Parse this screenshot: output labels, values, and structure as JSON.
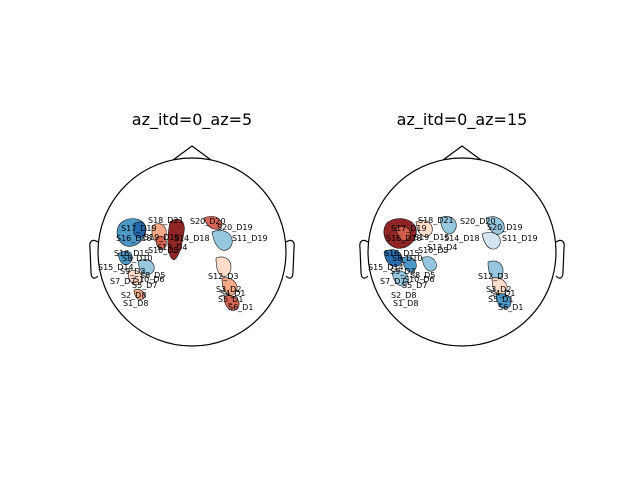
{
  "figure": {
    "panels": [
      {
        "title": "az_itd=0_az=5",
        "labels": [
          "S18_D21",
          "S17_D19",
          "S20_D20",
          "S20_D19",
          "S16_D18",
          "S19_D15",
          "S14_D18",
          "S11_D19",
          "S10_D5",
          "S16_D15",
          "S13_D4",
          "S8_D10",
          "S15_D14",
          "S9_D3",
          "S8_D5",
          "S10_D6",
          "S7_D7",
          "S5_D7",
          "S2_D8",
          "S1_D8",
          "S12_D3",
          "S3_D2",
          "S4_D1",
          "S5_D1",
          "S6_D1"
        ]
      },
      {
        "title": "az_itd=0_az=15",
        "labels": [
          "S18_D21",
          "S17_D19",
          "S20_D20",
          "S20_D19",
          "S16_D18",
          "S19_D15",
          "S14_D18",
          "S11_D19",
          "S10_D5",
          "S16_D15",
          "S13_D4",
          "S8_D10",
          "S15_D14",
          "S9_D3",
          "S8_D5",
          "S10_D6",
          "S7_D7",
          "S5_D7",
          "S2_D8",
          "S1_D8",
          "S12_D3",
          "S3_D2",
          "S4_D1",
          "S5_D1",
          "S6_D1"
        ]
      }
    ],
    "colors": {
      "outline": "#000000",
      "dark_red": "#8b1a1a",
      "red": "#d6604d",
      "light_red": "#f4a582",
      "pale_red": "#fddbc7",
      "pale_blue": "#d1e5f0",
      "light_blue": "#92c5de",
      "blue": "#4393c3",
      "dark_blue": "#2166ac"
    }
  }
}
